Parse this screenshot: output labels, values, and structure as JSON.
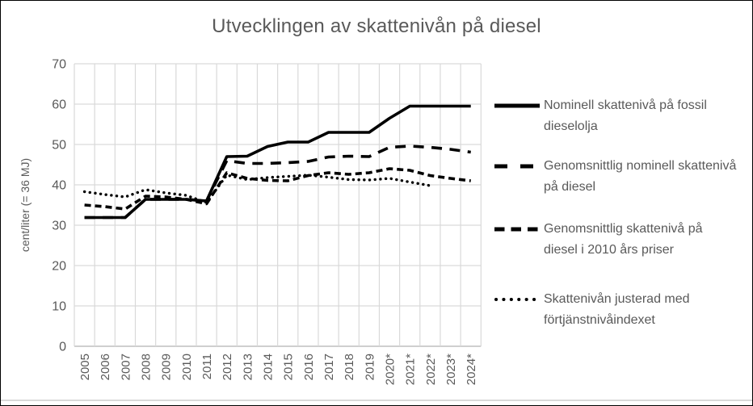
{
  "title": "Utvecklingen av skattenivån på diesel",
  "y_axis": {
    "title": "cent/liter (= 36 MJ)",
    "ticks": [
      0,
      10,
      20,
      30,
      40,
      50,
      60,
      70
    ]
  },
  "colors": {
    "text": "#595959",
    "gridline": "#d9d9d9",
    "axis_line": "#bfbfbf",
    "series": "#000000",
    "background": "#ffffff",
    "border": "#000000"
  },
  "chart_data": {
    "type": "line",
    "title": "Utvecklingen av skattenivån på diesel",
    "xlabel": "",
    "ylabel": "cent/liter (= 36 MJ)",
    "ylim": [
      0,
      70
    ],
    "grid": true,
    "legend_position": "right",
    "categories": [
      "2005",
      "2006",
      "2007",
      "2008",
      "2009",
      "2010",
      "2011",
      "2012",
      "2013",
      "2014",
      "2015",
      "2016",
      "2017",
      "2018",
      "2019",
      "2020*",
      "2021*",
      "2022*",
      "2023*",
      "2024*"
    ],
    "series": [
      {
        "name": "Nominell skattenivå på fossil dieselolja",
        "line_style": "solid",
        "color": "#000000",
        "values": [
          31.9,
          31.9,
          31.9,
          36.4,
          36.4,
          36.4,
          36.0,
          47.0,
          47.1,
          49.5,
          50.6,
          50.6,
          53.0,
          53.0,
          53.0,
          56.5,
          59.5,
          59.5,
          59.5,
          59.5
        ]
      },
      {
        "name": "Genomsnittlig nominell skattenivå på diesel",
        "line_style": "long-dash",
        "color": "#000000",
        "values": [
          31.9,
          31.9,
          31.9,
          36.4,
          36.4,
          36.4,
          36.0,
          46.0,
          45.3,
          45.3,
          45.5,
          45.8,
          46.9,
          47.1,
          47.0,
          49.3,
          49.6,
          49.3,
          48.8,
          48.1
        ]
      },
      {
        "name": "Genomsnittlig skattenivå på diesel i 2010 års priser",
        "line_style": "dash",
        "color": "#000000",
        "values": [
          35.0,
          34.6,
          34.0,
          37.2,
          37.0,
          36.4,
          35.3,
          43.0,
          41.6,
          41.1,
          41.0,
          42.3,
          43.0,
          42.6,
          43.0,
          44.0,
          43.6,
          42.3,
          41.6,
          41.0
        ]
      },
      {
        "name": "Skattenivån justerad med förtjänstnivåindexet",
        "line_style": "dotted",
        "color": "#000000",
        "values": [
          38.3,
          37.6,
          37.0,
          38.8,
          38.0,
          37.4,
          35.6,
          42.4,
          41.3,
          41.8,
          42.1,
          42.4,
          41.9,
          41.3,
          41.2,
          41.6,
          40.7,
          39.8,
          null,
          null
        ]
      }
    ]
  }
}
